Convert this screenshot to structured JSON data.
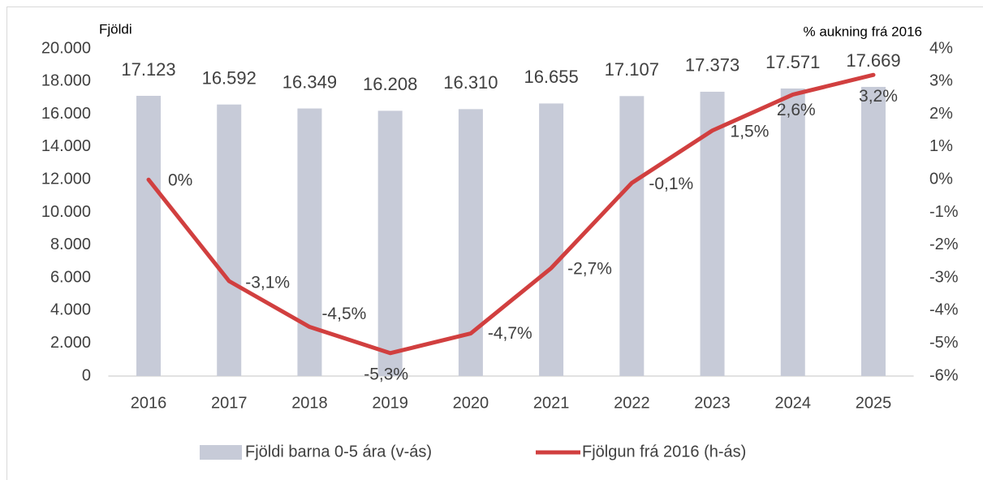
{
  "chart_data": {
    "type": "bar",
    "y_label": "Fjöldi",
    "y2_label": "% aukning frá 2016",
    "categories": [
      "2016",
      "2017",
      "2018",
      "2019",
      "2020",
      "2021",
      "2022",
      "2023",
      "2024",
      "2025"
    ],
    "series": [
      {
        "name": "Fjöldi barna 0-5 ára (v-ás)",
        "type": "bar",
        "color": "#c7cbd8",
        "values": [
          17123,
          16592,
          16349,
          16208,
          16310,
          16655,
          17107,
          17373,
          17571,
          17669
        ],
        "value_labels": [
          "17.123",
          "16.592",
          "16.349",
          "16.208",
          "16.310",
          "16.655",
          "17.107",
          "17.373",
          "17.571",
          "17.669"
        ]
      },
      {
        "name": "Fjölgun frá 2016 (h-ás)",
        "type": "line",
        "axis": "y2",
        "color": "#d13f3f",
        "values": [
          0,
          -3.1,
          -4.5,
          -5.3,
          -4.7,
          -2.7,
          -0.1,
          1.5,
          2.6,
          3.2
        ],
        "value_labels": [
          "0%",
          "-3,1%",
          "-4,5%",
          "-5,3%",
          "-4,7%",
          "-2,7%",
          "-0,1%",
          "1,5%",
          "2,6%",
          "3,2%"
        ]
      }
    ],
    "ylim": [
      0,
      20000
    ],
    "yticks": [
      0,
      {
        "value": 2000,
        "label": "2.000"
      },
      {
        "value": 4000,
        "label": "4.000"
      },
      {
        "value": 6000,
        "label": "6.000"
      },
      {
        "value": 8000,
        "label": "8.000"
      },
      {
        "value": 10000,
        "label": "10.000"
      },
      {
        "value": 12000,
        "label": "12.000"
      },
      {
        "value": 14000,
        "label": "14.000"
      },
      {
        "value": 16000,
        "label": "16.000"
      },
      {
        "value": 18000,
        "label": "18.000"
      },
      {
        "value": 20000,
        "label": "20.000"
      }
    ],
    "y2lim": [
      -6,
      4
    ],
    "y2ticks": [
      {
        "value": -6,
        "label": "-6%"
      },
      {
        "value": -5,
        "label": "-5%"
      },
      {
        "value": -4,
        "label": "-4%"
      },
      {
        "value": -3,
        "label": "-3%"
      },
      {
        "value": -2,
        "label": "-2%"
      },
      {
        "value": -1,
        "label": "-1%"
      },
      {
        "value": 0,
        "label": "0%"
      },
      {
        "value": 1,
        "label": "1%"
      },
      {
        "value": 2,
        "label": "2%"
      },
      {
        "value": 3,
        "label": "3%"
      },
      {
        "value": 4,
        "label": "4%"
      }
    ],
    "grid": false,
    "legend": "bottom"
  }
}
